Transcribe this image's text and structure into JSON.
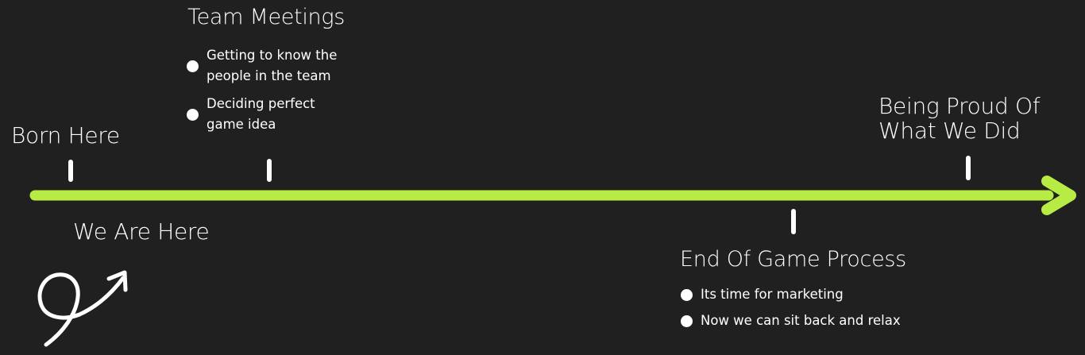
{
  "colors": {
    "background": "#202020",
    "timeline": "#b8ec45",
    "text": "#ffffff"
  },
  "milestones": {
    "born_here": {
      "title": "Born Here"
    },
    "team_meetings": {
      "title": "Team Meetings",
      "bullets": [
        {
          "line1": "Getting to know the",
          "line2": "people in the team"
        },
        {
          "line1": "Deciding perfect",
          "line2": "game idea"
        }
      ]
    },
    "we_are_here": {
      "title": "We Are Here"
    },
    "end_of_game_process": {
      "title": "End Of Game Process",
      "bullets": [
        {
          "text": "Its time for marketing"
        },
        {
          "text": "Now we can sit back and relax"
        }
      ]
    },
    "being_proud": {
      "title_line1": "Being Proud Of",
      "title_line2": "What We Did"
    }
  },
  "icons": {
    "timeline_arrow": "arrow-right-icon",
    "we_are_here_marker": "curly-arrow-icon"
  }
}
